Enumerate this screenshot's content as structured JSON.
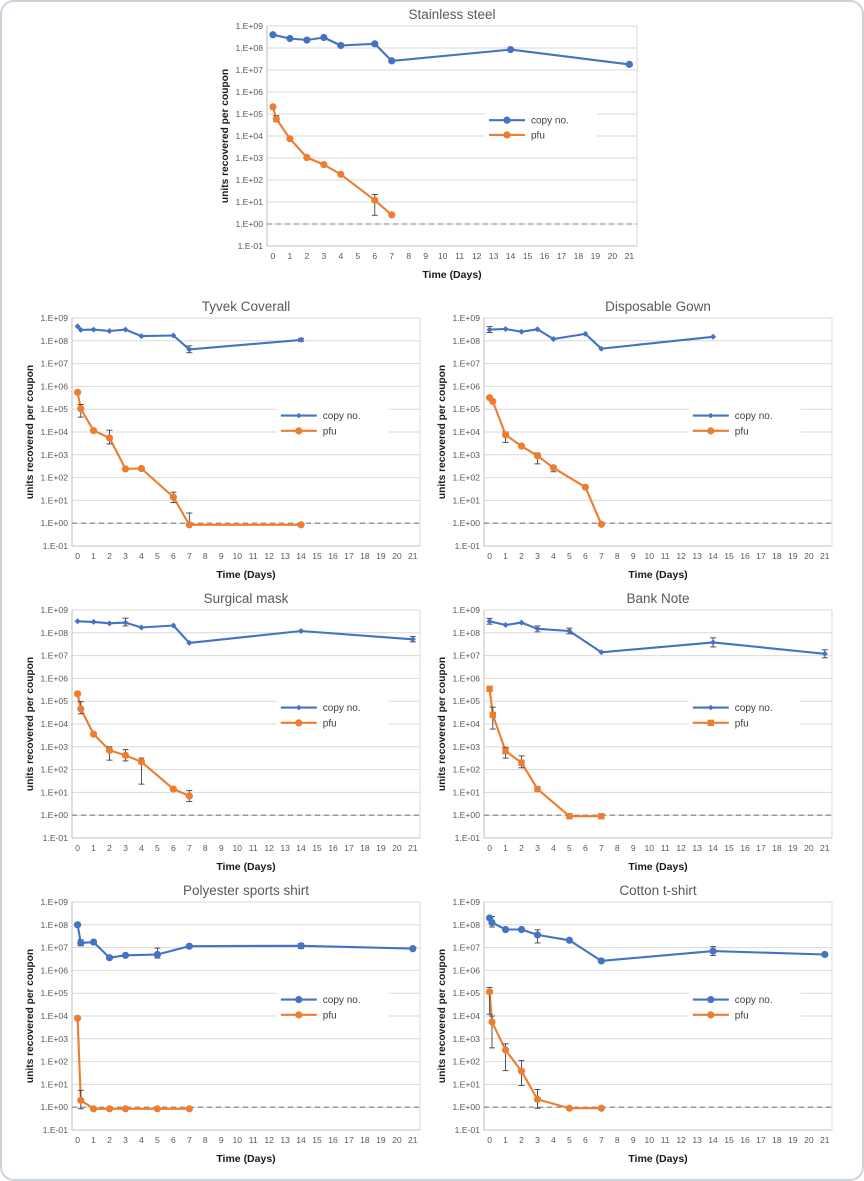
{
  "page": {
    "background": "#ffffff",
    "border_color": "#ccd3dc"
  },
  "colors": {
    "copy": "#4472C4",
    "pfu": "#ED7D31",
    "grid": "#d9d9d9",
    "axis_line": "#bfbfbf",
    "error": "#404040",
    "title": "#595959",
    "tick": "#595959",
    "label": "#1a1a1a",
    "baseline": "#7f7f7f",
    "legend_text": "#404040"
  },
  "axis": {
    "y_label": "units recovered per coupon",
    "x_label": "Time (Days)",
    "y_tick_labels": [
      "1.E+09",
      "1.E+08",
      "1.E+07",
      "1.E+06",
      "1.E+05",
      "1.E+04",
      "1.E+03",
      "1.E+02",
      "1.E+01",
      "1.E+00",
      "1.E-01"
    ],
    "x_ticks": [
      0,
      1,
      2,
      3,
      4,
      5,
      6,
      7,
      8,
      9,
      10,
      11,
      12,
      13,
      14,
      15,
      16,
      17,
      18,
      19,
      20,
      21
    ],
    "baseline_value": 1
  },
  "chart_data": [
    {
      "id": "stainless-steel",
      "title": "Stainless steel",
      "type": "line",
      "xlabel": "Time (Days)",
      "ylabel": "units recovered per coupon",
      "xlim": [
        0,
        21
      ],
      "ylim": [
        0.1,
        1000000000
      ],
      "yscale": "log",
      "grid": "horizontal",
      "legend_position": "inside-right",
      "series": [
        {
          "name": "copy no.",
          "color_key": "copy",
          "marker": "circle",
          "x": [
            0,
            1,
            2,
            3,
            4,
            6,
            7,
            14,
            21
          ],
          "y": [
            400000000.0,
            270000000.0,
            230000000.0,
            300000000.0,
            130000000.0,
            155000000.0,
            26000000.0,
            85000000.0,
            18000000.0
          ],
          "err": [
            null,
            null,
            null,
            null,
            null,
            null,
            null,
            null,
            null
          ]
        },
        {
          "name": "pfu",
          "color_key": "pfu",
          "marker": "circle",
          "x": [
            0,
            0.2,
            1,
            2,
            3,
            4,
            6,
            7
          ],
          "y": [
            210000.0,
            60000.0,
            7500.0,
            1050.0,
            500.0,
            180.0,
            12.0,
            2.6
          ],
          "err": [
            null,
            [
              45000.0,
              85000.0
            ],
            null,
            null,
            null,
            null,
            [
              2.5,
              22.0
            ],
            null
          ]
        }
      ]
    },
    {
      "id": "tyvek-coverall",
      "title": "Tyvek Coverall",
      "type": "line",
      "xlabel": "Time (Days)",
      "ylabel": "units recovered per coupon",
      "xlim": [
        0,
        21
      ],
      "ylim": [
        0.1,
        1000000000
      ],
      "yscale": "log",
      "grid": "horizontal",
      "legend_position": "inside-right",
      "series": [
        {
          "name": "copy no.",
          "color_key": "copy",
          "marker": "diamond",
          "x": [
            0,
            0.2,
            1,
            2,
            3,
            4,
            6,
            7,
            14
          ],
          "y": [
            430000000.0,
            300000000.0,
            310000000.0,
            270000000.0,
            310000000.0,
            160000000.0,
            170000000.0,
            42000000.0,
            110000000.0
          ],
          "err": [
            null,
            null,
            null,
            null,
            null,
            null,
            null,
            [
              30000000.0,
              60000000.0
            ],
            [
              95000000.0,
              130000000.0
            ]
          ]
        },
        {
          "name": "pfu",
          "color_key": "pfu",
          "marker": "circle",
          "x": [
            0,
            0.2,
            1,
            2,
            3,
            4,
            6,
            7,
            14
          ],
          "y": [
            550000.0,
            105000.0,
            11500.0,
            5500.0,
            240.0,
            250.0,
            14.0,
            0.85,
            0.85
          ],
          "err": [
            null,
            [
              45000.0,
              160000.0
            ],
            null,
            [
              3000.0,
              12000.0
            ],
            null,
            null,
            [
              8,
              23.0
            ],
            [
              0.85,
              2.8
            ],
            null
          ]
        }
      ]
    },
    {
      "id": "disposable-gown",
      "title": "Disposable Gown",
      "type": "line",
      "xlabel": "Time (Days)",
      "ylabel": "units recovered per coupon",
      "xlim": [
        0,
        21
      ],
      "ylim": [
        0.1,
        1000000000
      ],
      "yscale": "log",
      "grid": "horizontal",
      "legend_position": "inside-right",
      "series": [
        {
          "name": "copy no.",
          "color_key": "copy",
          "marker": "diamond",
          "x": [
            0,
            1,
            2,
            3,
            4,
            6,
            7,
            14
          ],
          "y": [
            310000000.0,
            330000000.0,
            250000000.0,
            320000000.0,
            120000000.0,
            200000000.0,
            45000000.0,
            150000000.0
          ],
          "err": [
            [
              230000000.0,
              420000000.0
            ],
            null,
            null,
            null,
            null,
            null,
            null,
            null
          ]
        },
        {
          "name": "pfu",
          "color_key": "pfu",
          "marker": "circle",
          "x": [
            0,
            0.2,
            1,
            2,
            3,
            4,
            6,
            7
          ],
          "y": [
            320000.0,
            220000.0,
            7500.0,
            2400.0,
            900.0,
            270.0,
            38.0,
            0.9
          ],
          "err": [
            null,
            null,
            [
              3500.0,
              10000.0
            ],
            null,
            [
              400.0,
              1200.0
            ],
            [
              180.0,
              330.0
            ],
            null,
            null
          ]
        }
      ]
    },
    {
      "id": "surgical-mask",
      "title": "Surgical mask",
      "type": "line",
      "xlabel": "Time (Days)",
      "ylabel": "units recovered per coupon",
      "xlim": [
        0,
        21
      ],
      "ylim": [
        0.1,
        1000000000
      ],
      "yscale": "log",
      "grid": "horizontal",
      "legend_position": "inside-right",
      "series": [
        {
          "name": "copy no.",
          "color_key": "copy",
          "marker": "diamond",
          "x": [
            0,
            1,
            2,
            3,
            4,
            6,
            7,
            14,
            21
          ],
          "y": [
            320000000.0,
            300000000.0,
            260000000.0,
            280000000.0,
            170000000.0,
            210000000.0,
            36000000.0,
            120000000.0,
            52000000.0
          ],
          "err": [
            null,
            null,
            null,
            [
              200000000.0,
              440000000.0
            ],
            null,
            null,
            null,
            null,
            [
              40000000.0,
              68000000.0
            ]
          ]
        },
        {
          "name": "pfu",
          "color_key": "pfu",
          "marker": "circle",
          "x": [
            0,
            0.2,
            1,
            2,
            3,
            4,
            6,
            7
          ],
          "y": [
            210000.0,
            46000.0,
            3600.0,
            700.0,
            420.0,
            220.0,
            14.0,
            7.0
          ],
          "err": [
            null,
            [
              28000.0,
              95000.0
            ],
            null,
            [
              260.0,
              1000.0
            ],
            [
              240.0,
              750.0
            ],
            [
              23.0,
              320.0
            ],
            null,
            [
              4.0,
              12.0
            ]
          ]
        }
      ]
    },
    {
      "id": "bank-note",
      "title": "Bank Note",
      "type": "line",
      "xlabel": "Time (Days)",
      "ylabel": "units recovered per coupon",
      "xlim": [
        0,
        21
      ],
      "ylim": [
        0.1,
        1000000000
      ],
      "yscale": "log",
      "grid": "horizontal",
      "legend_position": "inside-right",
      "series": [
        {
          "name": "copy no.",
          "color_key": "copy",
          "marker": "diamond",
          "x": [
            0,
            1,
            2,
            3,
            5,
            7,
            14,
            21
          ],
          "y": [
            320000000.0,
            220000000.0,
            280000000.0,
            150000000.0,
            120000000.0,
            14000000.0,
            38000000.0,
            12000000.0
          ],
          "err": [
            [
              240000000.0,
              430000000.0
            ],
            null,
            null,
            [
              110000000.0,
              200000000.0
            ],
            [
              90000000.0,
              160000000.0
            ],
            null,
            [
              24000000.0,
              60000000.0
            ],
            [
              8000000.0,
              18000000.0
            ]
          ]
        },
        {
          "name": "pfu",
          "color_key": "pfu",
          "marker": "square",
          "x": [
            0,
            0.2,
            1,
            2,
            3,
            5,
            7
          ],
          "y": [
            350000.0,
            25000.0,
            650.0,
            200.0,
            14.0,
            0.9,
            0.9
          ],
          "err": [
            null,
            [
              6000.0,
              55000.0
            ],
            [
              320.0,
              950.0
            ],
            [
              120.0,
              400.0
            ],
            null,
            null,
            null
          ]
        }
      ]
    },
    {
      "id": "polyester-sports-shirt",
      "title": "Polyester sports shirt",
      "type": "line",
      "xlabel": "Time (Days)",
      "ylabel": "units recovered per coupon",
      "xlim": [
        0,
        21
      ],
      "ylim": [
        0.1,
        1000000000
      ],
      "yscale": "log",
      "grid": "horizontal",
      "legend_position": "inside-right",
      "series": [
        {
          "name": "copy no.",
          "color_key": "copy",
          "marker": "circle",
          "x": [
            0,
            0.2,
            1,
            2,
            3,
            5,
            7,
            14,
            21
          ],
          "y": [
            100000000.0,
            16000000.0,
            17500000.0,
            3600000.0,
            4600000.0,
            5000000.0,
            11500000.0,
            12000000.0,
            9000000.0
          ],
          "err": [
            null,
            [
              12000000.0,
              22000000.0
            ],
            null,
            null,
            null,
            [
              3500000.0,
              9500000.0
            ],
            null,
            [
              9000000.0,
              15000000.0
            ],
            null
          ]
        },
        {
          "name": "pfu",
          "color_key": "pfu",
          "marker": "circle",
          "x": [
            0,
            0.2,
            1,
            2,
            3,
            5,
            7
          ],
          "y": [
            8000.0,
            2.0,
            0.85,
            0.85,
            0.85,
            0.85,
            0.85
          ],
          "err": [
            null,
            [
              0.85,
              5.5
            ],
            null,
            null,
            null,
            null,
            null
          ]
        }
      ]
    },
    {
      "id": "cotton-t-shirt",
      "title": "Cotton t-shirt",
      "type": "line",
      "xlabel": "Time (Days)",
      "ylabel": "units recovered per coupon",
      "xlim": [
        0,
        21
      ],
      "ylim": [
        0.1,
        1000000000
      ],
      "yscale": "log",
      "grid": "horizontal",
      "legend_position": "inside-right",
      "series": [
        {
          "name": "copy no.",
          "color_key": "copy",
          "marker": "circle",
          "x": [
            0,
            0.15,
            1,
            2,
            3,
            5,
            7,
            14,
            21
          ],
          "y": [
            200000000.0,
            125000000.0,
            62000000.0,
            62000000.0,
            36000000.0,
            21000000.0,
            2600000.0,
            7000000.0,
            5000000.0
          ],
          "err": [
            null,
            [
              80000000.0,
              230000000.0
            ],
            null,
            null,
            [
              16000000.0,
              60000000.0
            ],
            null,
            null,
            [
              4500000.0,
              11000000.0
            ],
            null
          ]
        },
        {
          "name": "pfu",
          "color_key": "pfu",
          "marker": "circle",
          "x": [
            0,
            0.15,
            1,
            2,
            3,
            5,
            7
          ],
          "y": [
            115000.0,
            5500.0,
            320.0,
            38.0,
            2.2,
            0.9,
            0.9
          ],
          "err": [
            [
              12000.0,
              180000.0
            ],
            [
              400.0,
              10000.0
            ],
            [
              40.0,
              600.0
            ],
            [
              9.0,
              110.0
            ],
            [
              0.9,
              6.0
            ],
            null,
            null
          ]
        }
      ]
    }
  ]
}
